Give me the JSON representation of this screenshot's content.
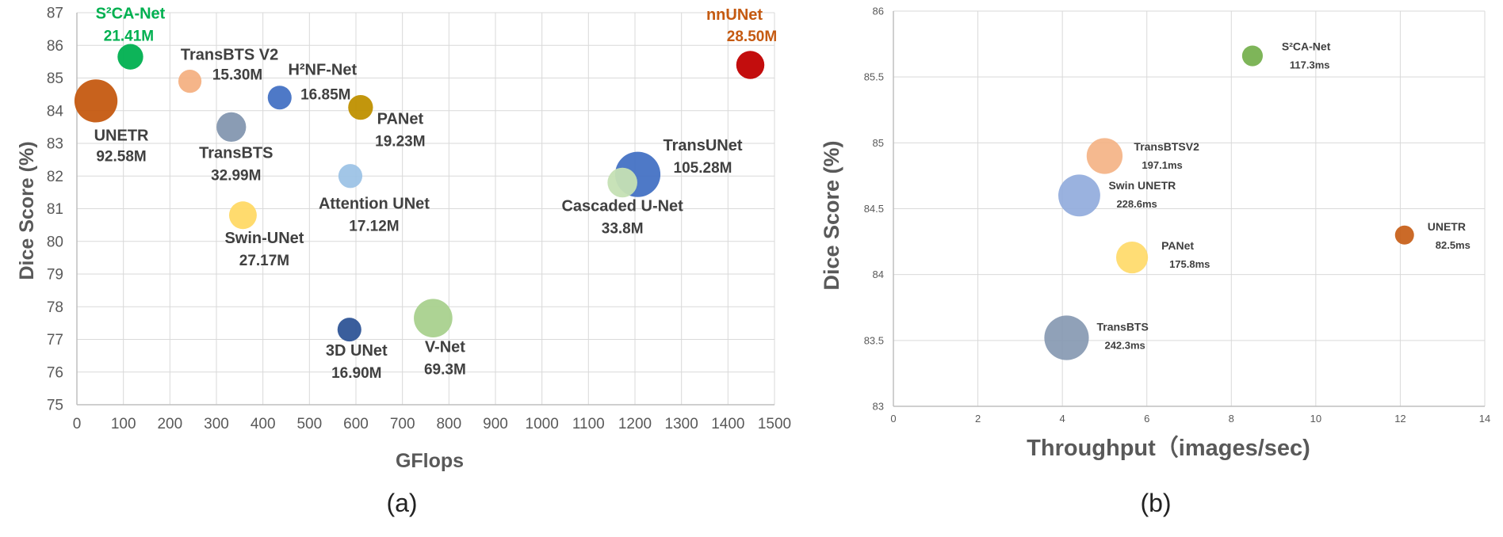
{
  "chart_data": [
    {
      "type": "scatter",
      "panel_caption": "(a)",
      "xlabel": "GFlops",
      "ylabel": "Dice Score (%)",
      "xlim": [
        0,
        1500
      ],
      "ylim": [
        75,
        87
      ],
      "xticks": [
        "0",
        "100",
        "200",
        "300",
        "400",
        "500",
        "600",
        "700",
        "800",
        "900",
        "1000",
        "1100",
        "1200",
        "1300",
        "1400",
        "1500"
      ],
      "yticks": [
        "75",
        "76",
        "77",
        "78",
        "79",
        "80",
        "81",
        "82",
        "83",
        "84",
        "85",
        "86",
        "87"
      ],
      "grid": true,
      "points": [
        {
          "name": "S²CA-Net",
          "value": "21.41M",
          "x": 115,
          "y": 85.65,
          "params": 21.41,
          "color": "#00b050",
          "label_color": "#00b050"
        },
        {
          "name": "nnUNet",
          "value": "28.50M",
          "x": 1448,
          "y": 85.4,
          "params": 28.5,
          "color": "#c00000",
          "label_color": "#c55a11"
        },
        {
          "name": "TransBTS V2",
          "value": "15.30M",
          "x": 243,
          "y": 84.9,
          "params": 15.3,
          "color": "#f4b183",
          "label_color": "#404040"
        },
        {
          "name": "H²NF-Net",
          "value": "16.85M",
          "x": 436,
          "y": 84.4,
          "params": 16.85,
          "color": "#4472c4",
          "label_color": "#404040"
        },
        {
          "name": "UNETR",
          "value": "92.58M",
          "x": 41,
          "y": 84.3,
          "params": 92.58,
          "color": "#c55a11",
          "label_color": "#404040"
        },
        {
          "name": "PANet",
          "value": "19.23M",
          "x": 610,
          "y": 84.1,
          "params": 19.23,
          "color": "#bf9000",
          "label_color": "#404040"
        },
        {
          "name": "TransBTS",
          "value": "32.99M",
          "x": 332,
          "y": 83.5,
          "params": 32.99,
          "color": "#8497b0",
          "label_color": "#404040"
        },
        {
          "name": "Attention UNet",
          "value": "17.12M",
          "x": 588,
          "y": 82.0,
          "params": 17.12,
          "color": "#9dc3e6",
          "label_color": "#404040"
        },
        {
          "name": "TransUNet",
          "value": "105.28M",
          "x": 1206,
          "y": 82.05,
          "params": 105.28,
          "color": "#4472c4",
          "label_color": "#404040"
        },
        {
          "name": "Cascaded U-Net",
          "value": "33.8M",
          "x": 1173,
          "y": 81.8,
          "params": 33.8,
          "color": "#c5e0b4",
          "label_color": "#404040"
        },
        {
          "name": "Swin-UNet",
          "value": "27.17M",
          "x": 357,
          "y": 80.8,
          "params": 27.17,
          "color": "#ffd966",
          "label_color": "#404040"
        },
        {
          "name": "V-Net",
          "value": "69.3M",
          "x": 766,
          "y": 77.65,
          "params": 69.3,
          "color": "#a9d18e",
          "label_color": "#404040"
        },
        {
          "name": "3D UNet",
          "value": "16.90M",
          "x": 586,
          "y": 77.3,
          "params": 16.9,
          "color": "#2f5597",
          "label_color": "#404040"
        }
      ]
    },
    {
      "type": "scatter",
      "panel_caption": "(b)",
      "xlabel": "Throughput（images/sec)",
      "ylabel": "Dice Score (%)",
      "xlim": [
        0,
        14
      ],
      "ylim": [
        83,
        86
      ],
      "xticks": [
        "0",
        "2",
        "4",
        "6",
        "8",
        "10",
        "12",
        "14"
      ],
      "yticks": [
        "83",
        "83.5",
        "84",
        "84.5",
        "85",
        "85.5",
        "86"
      ],
      "grid": true,
      "points": [
        {
          "name": "S²CA-Net",
          "value": "117.3ms",
          "x": 8.5,
          "y": 85.66,
          "latency_ms": 117.3,
          "color": "#70ad47"
        },
        {
          "name": "TransBTSV2",
          "value": "197.1ms",
          "x": 5.0,
          "y": 84.9,
          "latency_ms": 197.1,
          "color": "#f4b183"
        },
        {
          "name": "Swin UNETR",
          "value": "228.6ms",
          "x": 4.4,
          "y": 84.6,
          "latency_ms": 228.6,
          "color": "#8faadc"
        },
        {
          "name": "UNETR",
          "value": "82.5ms",
          "x": 12.1,
          "y": 84.3,
          "latency_ms": 82.5,
          "color": "#c55a11"
        },
        {
          "name": "PANet",
          "value": "175.8ms",
          "x": 5.65,
          "y": 84.13,
          "latency_ms": 175.8,
          "color": "#ffd966"
        },
        {
          "name": "TransBTS",
          "value": "242.3ms",
          "x": 4.1,
          "y": 83.52,
          "latency_ms": 242.3,
          "color": "#8497b0"
        }
      ]
    }
  ]
}
